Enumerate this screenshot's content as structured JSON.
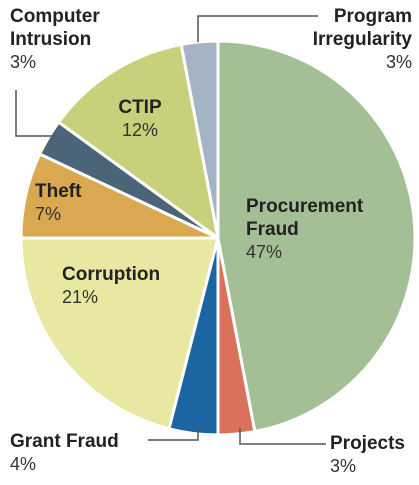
{
  "chart_data": {
    "type": "pie",
    "categories": [
      "Procurement Fraud",
      "Projects",
      "Grant Fraud",
      "Corruption",
      "Theft",
      "Computer Intrusion",
      "CTIP",
      "Program Irregularity"
    ],
    "values": [
      47,
      3,
      4,
      21,
      7,
      3,
      12,
      3
    ],
    "value_labels": [
      "47%",
      "3%",
      "4%",
      "21%",
      "7%",
      "3%",
      "12%",
      "3%"
    ],
    "colors": [
      "#a4bf95",
      "#d9715b",
      "#1b66a2",
      "#e8e8a2",
      "#d9a850",
      "#4b6478",
      "#c9d07c",
      "#a5b4c4"
    ]
  }
}
